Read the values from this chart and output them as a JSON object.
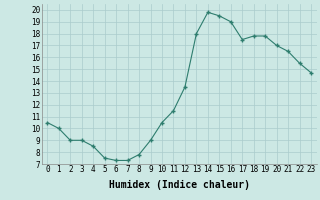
{
  "x": [
    0,
    1,
    2,
    3,
    4,
    5,
    6,
    7,
    8,
    9,
    10,
    11,
    12,
    13,
    14,
    15,
    16,
    17,
    18,
    19,
    20,
    21,
    22,
    23
  ],
  "y": [
    10.5,
    10.0,
    9.0,
    9.0,
    8.5,
    7.5,
    7.3,
    7.3,
    7.8,
    9.0,
    10.5,
    11.5,
    13.5,
    18.0,
    19.8,
    19.5,
    19.0,
    17.5,
    17.8,
    17.8,
    17.0,
    16.5,
    15.5,
    14.7
  ],
  "line_color": "#2e7d6e",
  "marker": "+",
  "marker_size": 3.5,
  "marker_linewidth": 1.0,
  "bg_color": "#cce8e4",
  "grid_color": "#aacccc",
  "xlabel": "Humidex (Indice chaleur)",
  "xlim": [
    -0.5,
    23.5
  ],
  "ylim": [
    7,
    20.5
  ],
  "yticks": [
    7,
    8,
    9,
    10,
    11,
    12,
    13,
    14,
    15,
    16,
    17,
    18,
    19,
    20
  ],
  "xticks": [
    0,
    1,
    2,
    3,
    4,
    5,
    6,
    7,
    8,
    9,
    10,
    11,
    12,
    13,
    14,
    15,
    16,
    17,
    18,
    19,
    20,
    21,
    22,
    23
  ],
  "tick_fontsize": 5.5,
  "label_fontsize": 7.0
}
